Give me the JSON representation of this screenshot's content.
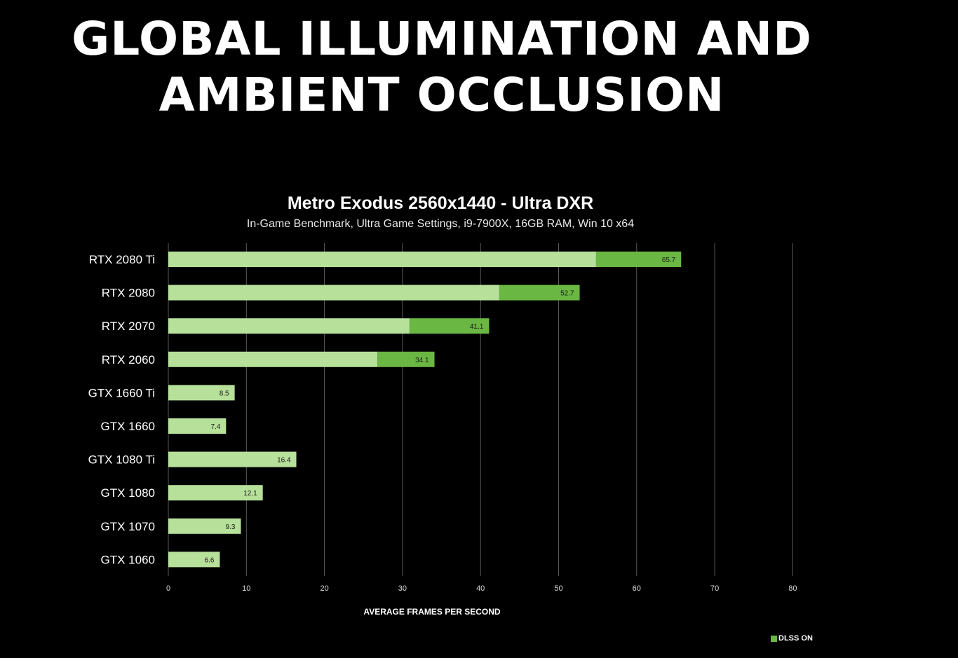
{
  "slide": {
    "title_line1": "GLOBAL ILLUMINATION AND",
    "title_line2": "AMBIENT OCCLUSION"
  },
  "colors": {
    "base_bar": "#b7e09a",
    "dlss_bar": "#6ab743",
    "grid": "#5a5a5a",
    "axis_text": "#d8d8d8",
    "label_text": "#ffffff",
    "value_text": "#1a1a1a"
  },
  "chart_data": {
    "type": "bar",
    "orientation": "horizontal",
    "stacked": true,
    "title": "Metro Exodus 2560x1440 - Ultra DXR",
    "subtitle": "In-Game Benchmark, Ultra Game Settings, i9-7900X, 16GB RAM, Win 10 x64",
    "xlabel": "AVERAGE FRAMES PER SECOND",
    "ylabel": "",
    "xlim": [
      0,
      80
    ],
    "xticks": [
      0,
      10,
      20,
      30,
      40,
      50,
      60,
      70,
      80
    ],
    "grid": true,
    "categories": [
      "RTX 2080 Ti",
      "RTX 2080",
      "RTX 2070",
      "RTX 2060",
      "GTX 1660 Ti",
      "GTX 1660",
      "GTX 1080 Ti",
      "GTX 1080",
      "GTX 1070",
      "GTX 1060"
    ],
    "series": [
      {
        "values": [
          54.8,
          42.4,
          30.9,
          26.8,
          8.5,
          7.4,
          16.4,
          12.1,
          9.3,
          6.6
        ]
      },
      {
        "name": "DLSS ON",
        "values": [
          10.9,
          10.3,
          10.2,
          7.3,
          0,
          0,
          0,
          0,
          0,
          0
        ]
      }
    ],
    "totals": [
      "65.7",
      "52.7",
      "41.1",
      "34.1",
      "8.5",
      "7.4",
      "16.4",
      "12.1",
      "9.3",
      "6.6"
    ],
    "legend": {
      "position": "bottom-right",
      "entries": [
        "DLSS ON"
      ]
    }
  }
}
